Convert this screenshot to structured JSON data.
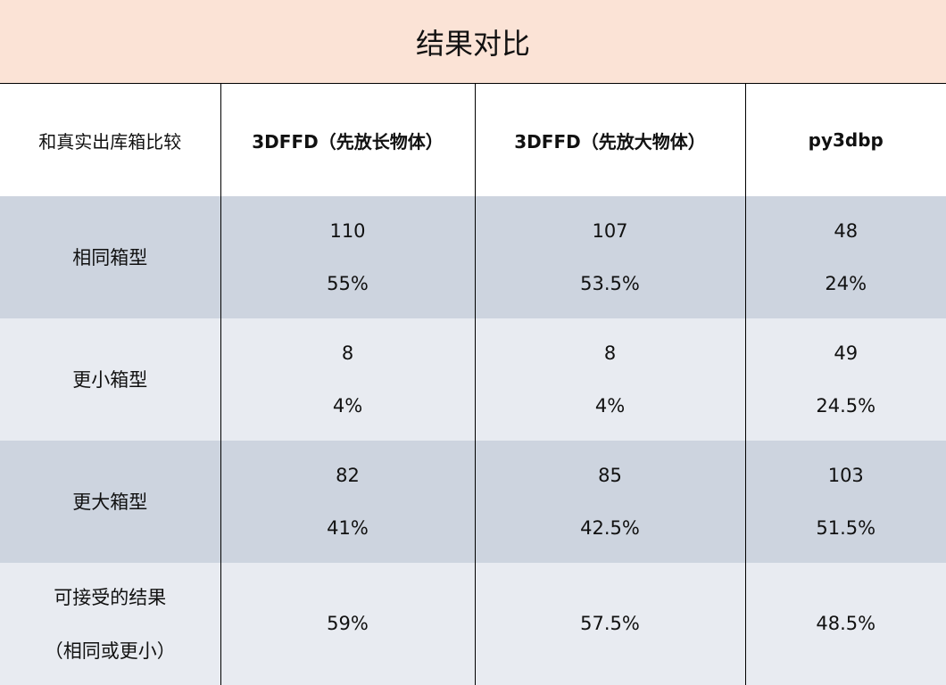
{
  "title": "结果对比",
  "columns": [
    "和真实出库箱比较",
    "3DFFD（先放长物体）",
    "3DFFD（先放大物体）",
    "py3dbp"
  ],
  "rows": [
    {
      "label": [
        "相同箱型"
      ],
      "cells": [
        [
          "110",
          "55%"
        ],
        [
          "107",
          "53.5%"
        ],
        [
          "48",
          "24%"
        ]
      ]
    },
    {
      "label": [
        "更小箱型"
      ],
      "cells": [
        [
          "8",
          "4%"
        ],
        [
          "8",
          "4%"
        ],
        [
          "49",
          "24.5%"
        ]
      ]
    },
    {
      "label": [
        "更大箱型"
      ],
      "cells": [
        [
          "82",
          "41%"
        ],
        [
          "85",
          "42.5%"
        ],
        [
          "103",
          "51.5%"
        ]
      ]
    },
    {
      "label": [
        "可接受的结果",
        "（相同或更小）"
      ],
      "cells": [
        [
          "59%"
        ],
        [
          "57.5%"
        ],
        [
          "48.5%"
        ]
      ]
    }
  ],
  "colors": {
    "title_bg": "#fbe3d6",
    "row_dark": "#cdd4df",
    "row_light": "#e8ebf1"
  }
}
